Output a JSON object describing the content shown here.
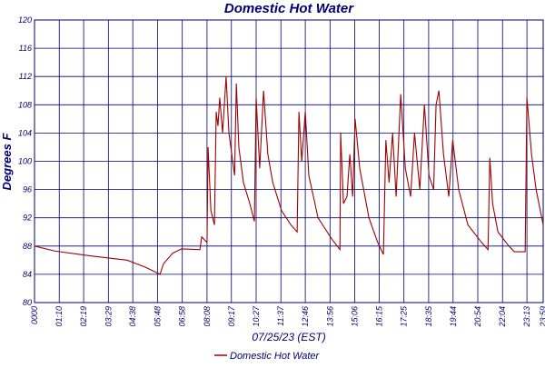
{
  "chart_data": {
    "type": "line",
    "title": "Domestic Hot Water",
    "x_label": "07/25/23 (EST)",
    "y_label": "Degrees F",
    "x": [
      0,
      57,
      160,
      262,
      288,
      314,
      355,
      365,
      391,
      416,
      468,
      473,
      488,
      491,
      499,
      509,
      514,
      519,
      524,
      532,
      542,
      550,
      566,
      571,
      578,
      591,
      609,
      622,
      627,
      637,
      648,
      660,
      674,
      699,
      725,
      743,
      748,
      756,
      766,
      776,
      802,
      841,
      864,
      866,
      874,
      884,
      892,
      900,
      907,
      920,
      946,
      971,
      987,
      994,
      1003,
      1013,
      1023,
      1036,
      1049,
      1064,
      1075,
      1090,
      1103,
      1116,
      1129,
      1136,
      1144,
      1157,
      1172,
      1183,
      1200,
      1226,
      1265,
      1283,
      1288,
      1296,
      1311,
      1342,
      1357,
      1388,
      1393,
      1406,
      1419,
      1439
    ],
    "series": [
      {
        "name": "Domestic Hot Water",
        "color": "#a00000",
        "values": [
          88,
          87.3,
          86.6,
          86,
          85.5,
          85,
          84,
          85.5,
          87,
          87.6,
          87.5,
          89.3,
          88.5,
          102,
          93,
          91,
          107,
          105,
          109,
          104,
          112,
          104,
          98,
          111,
          102,
          97,
          94,
          91.5,
          109,
          99,
          110,
          101,
          97,
          93,
          91,
          90,
          107,
          100,
          107,
          98,
          92,
          89,
          87.5,
          104,
          94,
          95,
          101,
          95,
          106,
          99,
          92,
          88.5,
          86.8,
          103,
          97,
          104,
          95,
          109.5,
          99,
          95,
          104,
          96,
          108,
          98,
          96,
          108,
          110,
          101,
          95,
          103,
          96,
          91,
          88.5,
          87.5,
          100.5,
          94,
          90,
          88,
          87.2,
          87.2,
          109,
          101,
          96,
          91
        ]
      }
    ],
    "xlim": [
      0,
      1439
    ],
    "xticks": [
      {
        "value": 0,
        "label": "0000"
      },
      {
        "value": 70,
        "label": "01:10"
      },
      {
        "value": 139,
        "label": "02:19"
      },
      {
        "value": 209,
        "label": "03:29"
      },
      {
        "value": 278,
        "label": "04:38"
      },
      {
        "value": 348,
        "label": "05:48"
      },
      {
        "value": 418,
        "label": "06:58"
      },
      {
        "value": 488,
        "label": "08:08"
      },
      {
        "value": 557,
        "label": "09:17"
      },
      {
        "value": 627,
        "label": "10:27"
      },
      {
        "value": 697,
        "label": "11:37"
      },
      {
        "value": 766,
        "label": "12:46"
      },
      {
        "value": 836,
        "label": "13:56"
      },
      {
        "value": 906,
        "label": "15:06"
      },
      {
        "value": 975,
        "label": "16:15"
      },
      {
        "value": 1045,
        "label": "17:25"
      },
      {
        "value": 1115,
        "label": "18:35"
      },
      {
        "value": 1184,
        "label": "19:44"
      },
      {
        "value": 1254,
        "label": "20:54"
      },
      {
        "value": 1324,
        "label": "22:04"
      },
      {
        "value": 1393,
        "label": "23:13"
      },
      {
        "value": 1439,
        "label": "23:59"
      }
    ],
    "ylim": [
      80,
      120
    ],
    "yticks": [
      80,
      84,
      88,
      92,
      96,
      100,
      104,
      108,
      112,
      116,
      120
    ],
    "grid": true
  }
}
